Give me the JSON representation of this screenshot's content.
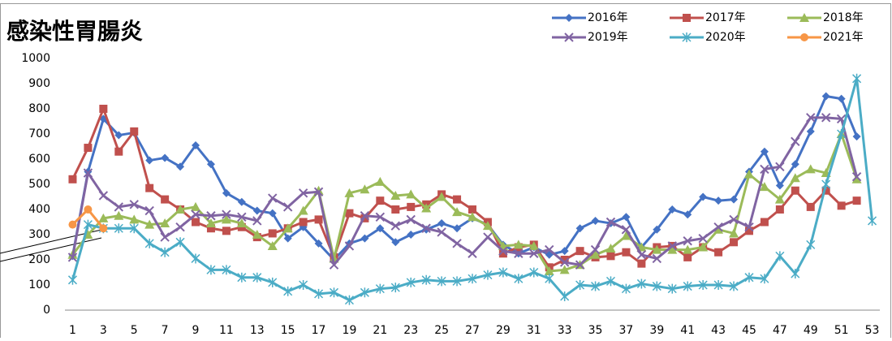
{
  "chart_data": {
    "type": "line",
    "title": "感染性胃腸炎",
    "categories": [
      1,
      null,
      3,
      null,
      5,
      null,
      7,
      null,
      9,
      null,
      11,
      null,
      13,
      null,
      15,
      null,
      17,
      null,
      19,
      null,
      21,
      null,
      23,
      null,
      25,
      null,
      27,
      null,
      29,
      null,
      31,
      null,
      33,
      null,
      35,
      null,
      37,
      null,
      39,
      null,
      41,
      null,
      43,
      null,
      45,
      null,
      47,
      null,
      49,
      null,
      51,
      null,
      53
    ],
    "ylim": [
      0,
      1000
    ],
    "yticks": [
      0,
      100,
      200,
      300,
      400,
      500,
      600,
      700,
      800,
      900,
      1000
    ],
    "grid": false,
    "series": [
      {
        "name": "2016年",
        "color": "#4472c4",
        "marker": "diamond",
        "values": [
          215,
          550,
          760,
          695,
          705,
          595,
          605,
          570,
          655,
          580,
          465,
          430,
          395,
          385,
          285,
          330,
          265,
          200,
          265,
          285,
          325,
          270,
          300,
          320,
          345,
          325,
          365,
          340,
          260,
          225,
          250,
          220,
          235,
          325,
          355,
          345,
          370,
          250,
          320,
          400,
          380,
          450,
          435,
          440,
          550,
          630,
          495,
          580,
          710,
          850,
          840,
          690,
          null
        ]
      },
      {
        "name": "2017年",
        "color": "#c0504d",
        "marker": "square",
        "values": [
          520,
          645,
          800,
          630,
          710,
          485,
          440,
          400,
          350,
          325,
          315,
          330,
          290,
          305,
          325,
          350,
          360,
          210,
          385,
          365,
          435,
          400,
          410,
          420,
          460,
          440,
          400,
          350,
          225,
          250,
          260,
          170,
          200,
          235,
          210,
          215,
          230,
          185,
          250,
          255,
          210,
          250,
          230,
          270,
          315,
          350,
          400,
          475,
          410,
          475,
          415,
          435,
          null
        ]
      },
      {
        "name": "2018年",
        "color": "#9bbb59",
        "marker": "triangle",
        "values": [
          220,
          300,
          365,
          375,
          360,
          340,
          345,
          400,
          410,
          345,
          360,
          345,
          300,
          255,
          325,
          395,
          475,
          205,
          465,
          480,
          510,
          455,
          460,
          405,
          450,
          390,
          370,
          335,
          255,
          260,
          255,
          155,
          160,
          180,
          220,
          245,
          295,
          250,
          240,
          240,
          240,
          250,
          320,
          305,
          540,
          490,
          440,
          525,
          560,
          545,
          700,
          520,
          null
        ]
      },
      {
        "name": "2019年",
        "color": "#8064a2",
        "marker": "x",
        "values": [
          210,
          545,
          455,
          410,
          420,
          395,
          290,
          330,
          380,
          375,
          380,
          370,
          355,
          445,
          410,
          465,
          470,
          180,
          255,
          375,
          370,
          335,
          360,
          325,
          310,
          265,
          225,
          290,
          235,
          225,
          225,
          240,
          190,
          180,
          240,
          350,
          320,
          220,
          205,
          255,
          275,
          285,
          330,
          360,
          330,
          560,
          570,
          670,
          765,
          765,
          760,
          530,
          null
        ]
      },
      {
        "name": "2020年",
        "color": "#4bacc6",
        "marker": "star",
        "values": [
          120,
          340,
          325,
          325,
          325,
          265,
          230,
          270,
          205,
          160,
          160,
          130,
          130,
          110,
          75,
          100,
          65,
          70,
          40,
          70,
          85,
          90,
          110,
          120,
          115,
          115,
          125,
          140,
          150,
          125,
          150,
          125,
          55,
          100,
          95,
          115,
          85,
          105,
          95,
          85,
          95,
          100,
          100,
          95,
          130,
          125,
          215,
          145,
          260,
          500,
          700,
          920,
          355
        ]
      },
      {
        "name": "2021年",
        "color": "#f79646",
        "marker": "circle",
        "values": [
          340,
          400,
          325,
          null,
          null,
          null,
          null,
          null,
          null,
          null,
          null,
          null,
          null,
          null,
          null,
          null,
          null,
          null,
          null,
          null,
          null,
          null,
          null,
          null,
          null,
          null,
          null,
          null,
          null,
          null,
          null,
          null,
          null,
          null,
          null,
          null,
          null,
          null,
          null,
          null,
          null,
          null,
          null,
          null,
          null,
          null,
          null,
          null,
          null,
          null,
          null,
          null,
          null
        ]
      }
    ]
  }
}
